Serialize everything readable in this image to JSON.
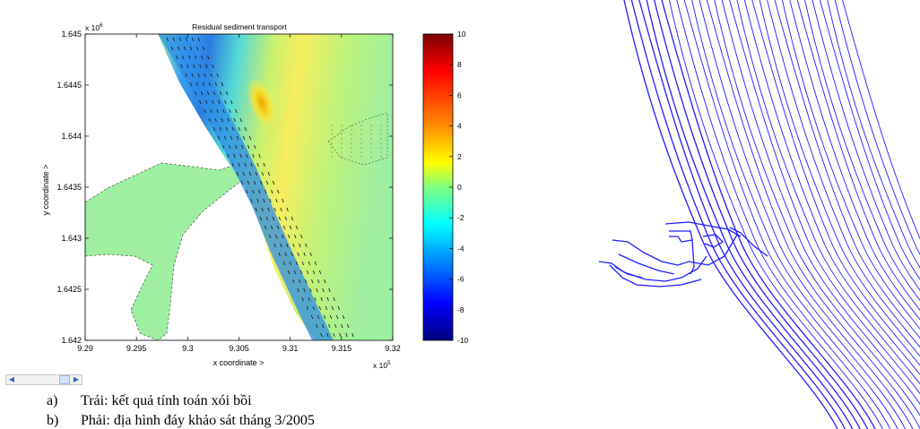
{
  "chart_data": [
    {
      "type": "heatmap",
      "title": "Residual sediment transport",
      "xlabel": "x coordinate  >",
      "ylabel": "y coordinate  >",
      "x_exponent_label": "x 10",
      "x_exponent_sup": "5",
      "y_exponent_label": "x 10",
      "y_exponent_sup": "6",
      "xlim": [
        929000,
        932000
      ],
      "ylim": [
        1642000,
        1645000
      ],
      "x_ticks": [
        "9.29",
        "9.295",
        "9.3",
        "9.305",
        "9.31",
        "9.315",
        "9.32"
      ],
      "y_ticks": [
        "1.645",
        "1.6445",
        "1.644",
        "1.6435",
        "1.643",
        "1.6425",
        "1.642"
      ],
      "colorbar": {
        "range": [
          -10,
          10
        ],
        "ticks": [
          "10",
          "8",
          "6",
          "4",
          "2",
          "0",
          "-2",
          "-4",
          "-6",
          "-8",
          "-10"
        ],
        "colors": [
          "#7f0000",
          "#ff0000",
          "#ff8c00",
          "#ffff00",
          "#7fff7f",
          "#00ffff",
          "#0080ff",
          "#0000ff",
          "#00007f"
        ]
      },
      "colors": {
        "background_field": "#9ef0a0",
        "shore_band": "#2c8ce8",
        "deposition_core": "#f0c020"
      }
    },
    {
      "type": "contour",
      "colors": {
        "contour_line": "#1e1eff"
      }
    }
  ],
  "captions": [
    {
      "label": "a)",
      "text": "Trái: kết quả tính toán xói bồi"
    },
    {
      "label": "b)",
      "text": "Phải: địa hình đáy khảo sát tháng 3/2005"
    }
  ]
}
